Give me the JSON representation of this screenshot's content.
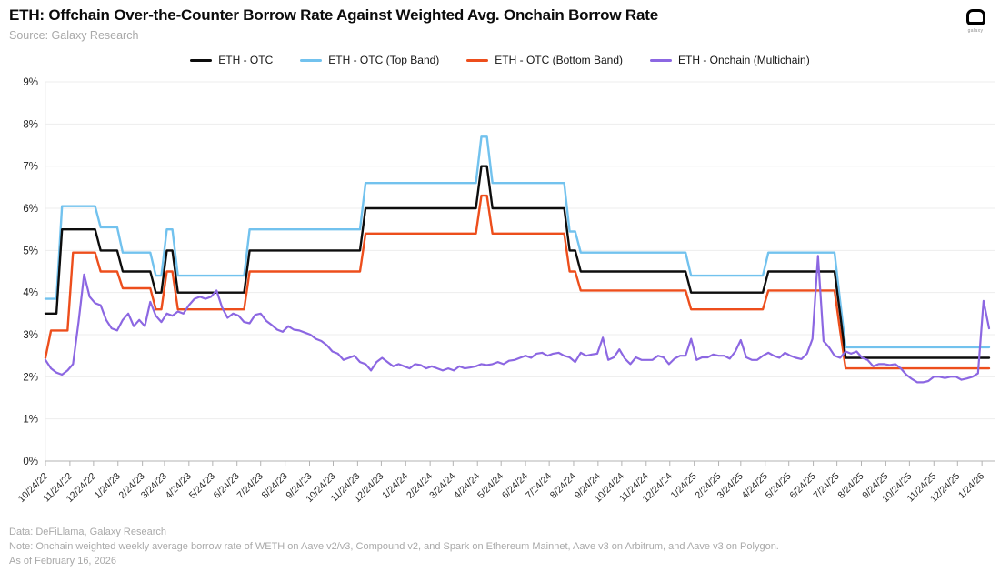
{
  "header": {
    "source": "Source: Galaxy Research",
    "logo_text": "galaxy"
  },
  "footer": {
    "line1": "Data: DeFiLlama, Galaxy Research",
    "line2": "Note: Onchain weighted weekly average borrow rate of WETH on Aave v2/v3, Compound v2, and Spark on Ethereum Mainnet, Aave v3 on Arbitrum, and Aave v3 on Polygon.",
    "line3": "As of February 16, 2026"
  },
  "chart_data": {
    "type": "line",
    "title": "ETH: Offchain Over-the-Counter Borrow Rate Against Weighted Avg. Onchain Borrow Rate",
    "x_unit": "weekly data, week index 0 = 10/24/22, one point per week through 2/2/26",
    "total_weeks": 171,
    "ylim": [
      0,
      9
    ],
    "y_tick_labels": [
      "0%",
      "1%",
      "2%",
      "3%",
      "4%",
      "5%",
      "6%",
      "7%",
      "8%",
      "9%"
    ],
    "grid": "horizontal",
    "legend_position": "top",
    "x_tick_labels": [
      "10/24/22",
      "11/24/22",
      "12/24/22",
      "1/24/23",
      "2/24/23",
      "3/24/23",
      "4/24/23",
      "5/24/23",
      "6/24/23",
      "7/24/23",
      "8/24/23",
      "9/24/23",
      "10/24/23",
      "11/24/23",
      "12/24/23",
      "1/24/24",
      "2/24/24",
      "3/24/24",
      "4/24/24",
      "5/24/24",
      "6/24/24",
      "7/24/24",
      "8/24/24",
      "9/24/24",
      "10/24/24",
      "11/24/24",
      "12/24/24",
      "1/24/25",
      "2/24/25",
      "3/24/25",
      "4/24/25",
      "5/24/25",
      "6/24/25",
      "7/24/25",
      "8/24/25",
      "9/24/25",
      "10/24/25",
      "11/24/25",
      "12/24/25",
      "1/24/26"
    ],
    "x_tick_weeks": [
      0,
      4.43,
      8.71,
      13.14,
      17.57,
      21.57,
      26.0,
      30.29,
      34.71,
      39.0,
      43.43,
      47.86,
      52.14,
      56.57,
      60.86,
      65.29,
      69.71,
      73.86,
      78.29,
      82.57,
      87.0,
      91.29,
      95.71,
      100.14,
      104.43,
      108.86,
      113.14,
      117.57,
      122.0,
      126.0,
      130.43,
      134.71,
      139.14,
      143.43,
      147.86,
      152.29,
      156.57,
      161.0,
      165.29,
      169.71
    ],
    "series": [
      {
        "name": "ETH - OTC",
        "color": "#0d0d0d",
        "style": "step",
        "steps": [
          [
            0,
            3.5
          ],
          [
            3,
            5.5
          ],
          [
            10,
            5.0
          ],
          [
            14,
            4.5
          ],
          [
            20,
            4.0
          ],
          [
            22,
            5.0
          ],
          [
            24,
            4.0
          ],
          [
            37,
            5.0
          ],
          [
            58,
            6.0
          ],
          [
            79,
            7.0
          ],
          [
            81,
            6.0
          ],
          [
            95,
            5.0
          ],
          [
            97,
            4.5
          ],
          [
            117,
            4.0
          ],
          [
            131,
            4.5
          ],
          [
            144,
            3.5
          ],
          [
            145,
            2.45
          ]
        ]
      },
      {
        "name": "ETH - OTC (Top Band)",
        "color": "#72c2ee",
        "style": "step",
        "steps": [
          [
            0,
            3.85
          ],
          [
            3,
            6.05
          ],
          [
            10,
            5.55
          ],
          [
            14,
            4.95
          ],
          [
            20,
            4.4
          ],
          [
            22,
            5.5
          ],
          [
            24,
            4.4
          ],
          [
            37,
            5.5
          ],
          [
            58,
            6.6
          ],
          [
            79,
            7.7
          ],
          [
            81,
            6.6
          ],
          [
            95,
            5.45
          ],
          [
            97,
            4.95
          ],
          [
            117,
            4.4
          ],
          [
            131,
            4.95
          ],
          [
            144,
            3.8
          ],
          [
            145,
            2.7
          ]
        ]
      },
      {
        "name": "ETH - OTC (Bottom Band)",
        "color": "#ed4e1c",
        "style": "step",
        "steps": [
          [
            0,
            2.45
          ],
          [
            1,
            3.1
          ],
          [
            5,
            4.95
          ],
          [
            10,
            4.5
          ],
          [
            14,
            4.1
          ],
          [
            20,
            3.6
          ],
          [
            22,
            4.5
          ],
          [
            24,
            3.6
          ],
          [
            37,
            4.5
          ],
          [
            58,
            5.4
          ],
          [
            79,
            6.3
          ],
          [
            81,
            5.4
          ],
          [
            95,
            4.5
          ],
          [
            97,
            4.05
          ],
          [
            117,
            3.6
          ],
          [
            131,
            4.05
          ],
          [
            144,
            3.1
          ],
          [
            145,
            2.2
          ]
        ]
      },
      {
        "name": "ETH - Onchain (Multichain)",
        "color": "#8c67e2",
        "style": "line",
        "weekly_values": [
          2.4,
          2.2,
          2.1,
          2.05,
          2.15,
          2.3,
          3.3,
          4.43,
          3.9,
          3.75,
          3.7,
          3.35,
          3.15,
          3.1,
          3.35,
          3.5,
          3.2,
          3.35,
          3.2,
          3.78,
          3.45,
          3.3,
          3.5,
          3.45,
          3.55,
          3.5,
          3.7,
          3.85,
          3.9,
          3.85,
          3.9,
          4.05,
          3.65,
          3.4,
          3.5,
          3.45,
          3.3,
          3.27,
          3.47,
          3.5,
          3.33,
          3.23,
          3.12,
          3.07,
          3.2,
          3.12,
          3.1,
          3.05,
          3.0,
          2.9,
          2.85,
          2.75,
          2.6,
          2.55,
          2.4,
          2.45,
          2.5,
          2.35,
          2.3,
          2.15,
          2.35,
          2.45,
          2.35,
          2.25,
          2.3,
          2.25,
          2.2,
          2.3,
          2.28,
          2.2,
          2.25,
          2.2,
          2.15,
          2.2,
          2.15,
          2.25,
          2.2,
          2.22,
          2.25,
          2.3,
          2.28,
          2.3,
          2.35,
          2.3,
          2.38,
          2.4,
          2.45,
          2.5,
          2.45,
          2.55,
          2.57,
          2.5,
          2.55,
          2.57,
          2.5,
          2.46,
          2.35,
          2.57,
          2.5,
          2.53,
          2.55,
          2.93,
          2.4,
          2.46,
          2.65,
          2.43,
          2.3,
          2.46,
          2.4,
          2.4,
          2.4,
          2.5,
          2.46,
          2.3,
          2.43,
          2.5,
          2.5,
          2.9,
          2.4,
          2.46,
          2.46,
          2.53,
          2.5,
          2.5,
          2.43,
          2.6,
          2.87,
          2.46,
          2.4,
          2.4,
          2.5,
          2.57,
          2.5,
          2.45,
          2.57,
          2.5,
          2.45,
          2.42,
          2.55,
          2.9,
          4.87,
          2.85,
          2.7,
          2.5,
          2.45,
          2.6,
          2.55,
          2.6,
          2.45,
          2.4,
          2.25,
          2.3,
          2.3,
          2.28,
          2.3,
          2.2,
          2.05,
          1.95,
          1.87,
          1.87,
          1.9,
          2.0,
          2.0,
          1.97,
          2.0,
          2.0,
          1.93,
          1.96,
          2.0,
          2.08,
          3.8,
          3.15
        ]
      }
    ]
  }
}
